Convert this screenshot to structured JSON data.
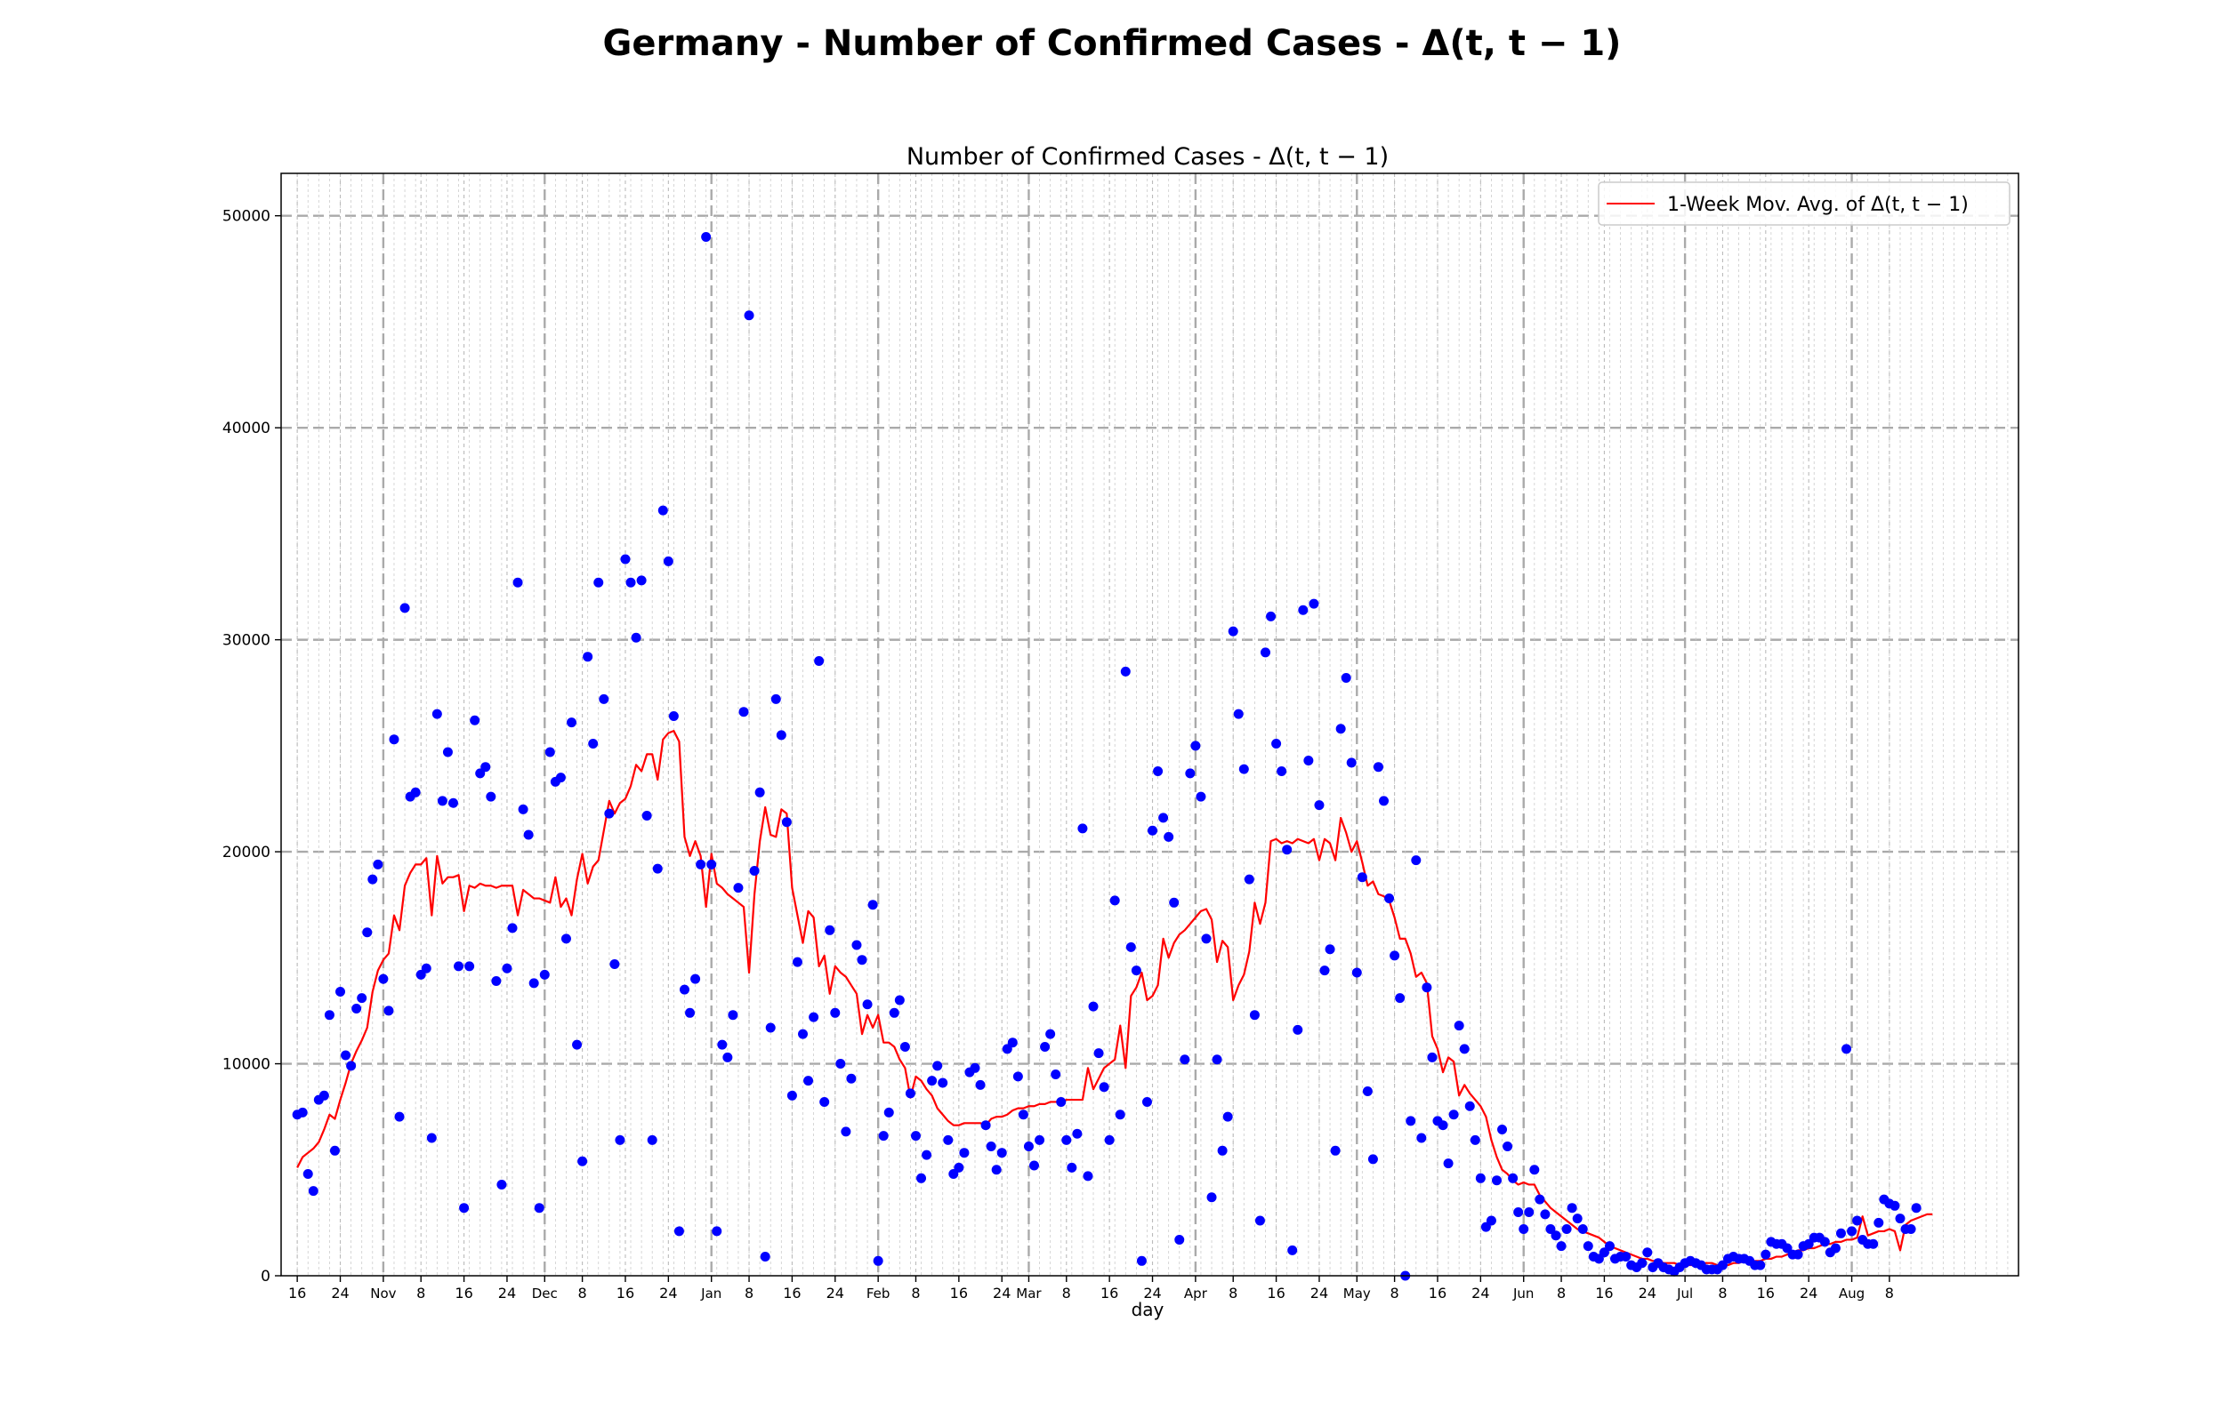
{
  "figure": {
    "suptitle": "Germany - Number of Confirmed Cases - Δ(t, t − 1)"
  },
  "chart_data": {
    "type": "scatter",
    "title": "Number of Confirmed Cases - Δ(t, t − 1)",
    "xlabel": "day",
    "ylabel": "",
    "ylim": [
      0,
      52000
    ],
    "xlim_day_offset": [
      -3,
      320
    ],
    "x_start_date": "2020-10-13",
    "yticks": [
      0,
      10000,
      20000,
      30000,
      40000,
      50000
    ],
    "xticks": [
      {
        "label": "16",
        "day": 0
      },
      {
        "label": "24",
        "day": 8
      },
      {
        "label": "Nov",
        "day": 16,
        "major": true
      },
      {
        "label": "8",
        "day": 23
      },
      {
        "label": "16",
        "day": 31
      },
      {
        "label": "24",
        "day": 39
      },
      {
        "label": "Dec",
        "day": 46,
        "major": true
      },
      {
        "label": "8",
        "day": 53
      },
      {
        "label": "16",
        "day": 61
      },
      {
        "label": "24",
        "day": 69
      },
      {
        "label": "Jan",
        "day": 77,
        "major": true
      },
      {
        "label": "8",
        "day": 84
      },
      {
        "label": "16",
        "day": 92
      },
      {
        "label": "24",
        "day": 100
      },
      {
        "label": "Feb",
        "day": 108,
        "major": true
      },
      {
        "label": "8",
        "day": 115
      },
      {
        "label": "16",
        "day": 123
      },
      {
        "label": "24",
        "day": 131
      },
      {
        "label": "Mar",
        "day": 136,
        "major": true
      },
      {
        "label": "8",
        "day": 143
      },
      {
        "label": "16",
        "day": 151
      },
      {
        "label": "24",
        "day": 159
      },
      {
        "label": "Apr",
        "day": 167,
        "major": true
      },
      {
        "label": "8",
        "day": 174
      },
      {
        "label": "16",
        "day": 182
      },
      {
        "label": "24",
        "day": 190
      },
      {
        "label": "May",
        "day": 197,
        "major": true
      },
      {
        "label": "8",
        "day": 204
      },
      {
        "label": "16",
        "day": 212
      },
      {
        "label": "24",
        "day": 220
      },
      {
        "label": "Jun",
        "day": 228,
        "major": true
      },
      {
        "label": "8",
        "day": 235
      },
      {
        "label": "16",
        "day": 243
      },
      {
        "label": "24",
        "day": 251
      },
      {
        "label": "Jul",
        "day": 258,
        "major": true
      },
      {
        "label": "8",
        "day": 265
      },
      {
        "label": "16",
        "day": 273
      },
      {
        "label": "24",
        "day": 281
      },
      {
        "label": "Aug",
        "day": 289,
        "major": true
      },
      {
        "label": "8",
        "day": 296
      }
    ],
    "grid": true,
    "legend": {
      "position": "top-right",
      "entries": [
        "1-Week Mov. Avg. of Δ(t, t − 1)"
      ]
    },
    "colors": {
      "points": "#0000ff",
      "line": "#ff0000",
      "grid": "#aaaaaa"
    },
    "series": [
      {
        "kind": "scatter",
        "values": [
          7600,
          7700,
          4800,
          4000,
          8300,
          8500,
          12300,
          5900,
          13400,
          10400,
          9900,
          12600,
          13100,
          16200,
          18700,
          19400,
          14000,
          12500,
          25300,
          7500,
          31500,
          22600,
          22800,
          14200,
          14500,
          6500,
          26500,
          22400,
          24700,
          22300,
          14600,
          3200,
          14600,
          26200,
          23700,
          24000,
          22600,
          13900,
          4300,
          14500,
          16400,
          32700,
          22000,
          20800,
          13800,
          3200,
          14200,
          24700,
          23300,
          23500,
          15900,
          26100,
          10900,
          5400,
          29200,
          25100,
          32700,
          27200,
          21800,
          14700,
          6400,
          33800,
          32700,
          30100,
          32800,
          21700,
          6400,
          19200,
          36100,
          33700,
          26400,
          2100,
          13500,
          12400,
          14000,
          19400,
          49000,
          19400,
          2100,
          10900,
          10300,
          12300,
          18300,
          26600,
          45300,
          19100,
          22800,
          900,
          11700,
          27200,
          25500,
          21400,
          8500,
          14800,
          11400,
          9200,
          12200,
          29000,
          8200,
          16300,
          12400,
          10000,
          6800,
          9300,
          15600,
          14900,
          12800,
          17500,
          700,
          6600,
          7700,
          12400,
          13000,
          10800,
          8600,
          6600,
          4600,
          5700,
          9200,
          9900,
          9100,
          6400,
          4800,
          5100,
          5800,
          9600,
          9800,
          9000,
          7100,
          6100,
          5000,
          5800,
          10700,
          11000,
          9400,
          7600,
          6100,
          5200,
          6400,
          10800,
          11400,
          9500,
          8200,
          6400,
          5100,
          6700,
          21100,
          4700,
          12700,
          10500,
          8900,
          6400,
          17700,
          7600,
          28500,
          15500,
          14400,
          700,
          8200,
          21000,
          23800,
          21600,
          20700,
          17600,
          1700,
          10200,
          23700,
          25000,
          22600,
          15900,
          3700,
          10200,
          5900,
          7500,
          30400,
          26500,
          23900,
          18700,
          12300,
          2600,
          29400,
          31100,
          25100,
          23800,
          20100,
          1200,
          11600,
          31400,
          24300,
          31700,
          22200,
          14400,
          15400,
          5900,
          25800,
          28200,
          24200,
          14300,
          18800,
          8700,
          5500,
          24000,
          22400,
          17800,
          15100,
          13100,
          0,
          7300,
          19600,
          6500,
          13600,
          10300,
          7300,
          7100,
          5300,
          7600,
          11800,
          10700,
          8000,
          6400,
          4600,
          2300,
          2600,
          4500,
          6900,
          6100,
          4600,
          3000,
          2200,
          3000,
          5000,
          3600,
          2900,
          2200,
          1900,
          1400,
          2200,
          3200,
          2700,
          2200,
          1400,
          900,
          800,
          1100,
          1400,
          800,
          900,
          900,
          500,
          400,
          600,
          1100,
          400,
          600,
          400,
          300,
          200,
          400,
          600,
          700,
          600,
          500,
          300,
          300,
          300,
          500,
          800,
          900,
          800,
          800,
          700,
          500,
          500,
          1000,
          1600,
          1500,
          1500,
          1300,
          1000,
          1000,
          1400,
          1500,
          1800,
          1800,
          1600,
          1100,
          1300,
          2000,
          10700,
          2100,
          2600,
          1700,
          1500,
          1500,
          2500,
          3600,
          3400,
          3300,
          2700,
          2200,
          2200,
          3200
        ]
      },
      {
        "kind": "line",
        "name": "1-Week Mov. Avg. of Δ(t, t − 1)",
        "values": [
          5100,
          5600,
          5800,
          6000,
          6300,
          6900,
          7600,
          7400,
          8300,
          9100,
          10000,
          10600,
          11100,
          11700,
          13400,
          14400,
          14900,
          15200,
          17000,
          16300,
          18400,
          19000,
          19400,
          19400,
          19700,
          17000,
          19800,
          18500,
          18800,
          18800,
          18900,
          17200,
          18400,
          18300,
          18500,
          18400,
          18400,
          18300,
          18400,
          18400,
          18400,
          17000,
          18200,
          18000,
          17800,
          17800,
          17700,
          17600,
          18800,
          17400,
          17800,
          17000,
          18700,
          19900,
          18500,
          19300,
          19600,
          21000,
          22400,
          21800,
          22300,
          22500,
          23100,
          24100,
          23800,
          24600,
          24600,
          23400,
          25300,
          25600,
          25700,
          25200,
          20700,
          19800,
          20500,
          19800,
          17400,
          19900,
          18500,
          18300,
          18000,
          17800,
          17600,
          17400,
          14300,
          18000,
          20500,
          22100,
          20800,
          20700,
          22000,
          21800,
          18300,
          17000,
          15700,
          17200,
          16900,
          14600,
          15100,
          13300,
          14600,
          14300,
          14100,
          13700,
          13300,
          11400,
          12300,
          11700,
          12300,
          11000,
          11000,
          10800,
          10200,
          9800,
          8400,
          9400,
          9200,
          8800,
          8500,
          7900,
          7600,
          7300,
          7100,
          7100,
          7200,
          7200,
          7200,
          7200,
          7100,
          7400,
          7500,
          7500,
          7600,
          7800,
          7900,
          7900,
          8000,
          8000,
          8100,
          8100,
          8200,
          8200,
          8200,
          8300,
          8300,
          8300,
          8300,
          9800,
          8800,
          9300,
          9800,
          10000,
          10200,
          11800,
          9800,
          13200,
          13600,
          14300,
          13000,
          13200,
          13700,
          15900,
          15000,
          15700,
          16100,
          16300,
          16600,
          16900,
          17200,
          17300,
          16800,
          14800,
          15800,
          15500,
          13000,
          13700,
          14200,
          15300,
          17600,
          16600,
          17600,
          20500,
          20600,
          20400,
          20500,
          20400,
          20600,
          20500,
          20400,
          20600,
          19600,
          20600,
          20400,
          19600,
          21600,
          20900,
          20000,
          20500,
          19500,
          18400,
          18600,
          18000,
          17900,
          17700,
          16900,
          15900,
          15900,
          15200,
          14100,
          14300,
          13800,
          11300,
          10700,
          9600,
          10300,
          10100,
          8500,
          9000,
          8600,
          8300,
          8000,
          7500,
          6400,
          5600,
          5000,
          4800,
          4500,
          4300,
          4400,
          4300,
          4300,
          3800,
          3500,
          3200,
          3000,
          2800,
          2600,
          2400,
          2200,
          2100,
          2000,
          1900,
          1800,
          1600,
          1400,
          1300,
          1200,
          1100,
          1000,
          900,
          800,
          800,
          700,
          700,
          600,
          600,
          600,
          500,
          500,
          500,
          500,
          600,
          600,
          600,
          500,
          500,
          500,
          600,
          600,
          700,
          700,
          700,
          700,
          800,
          800,
          900,
          900,
          1000,
          1100,
          1200,
          1200,
          1300,
          1300,
          1400,
          1500,
          1500,
          1600,
          1600,
          1700,
          1700,
          1800,
          2800,
          1900,
          2000,
          2100,
          2100,
          2200,
          2100,
          1200,
          2400,
          2600,
          2700,
          2800,
          2900,
          2900
        ]
      }
    ]
  }
}
